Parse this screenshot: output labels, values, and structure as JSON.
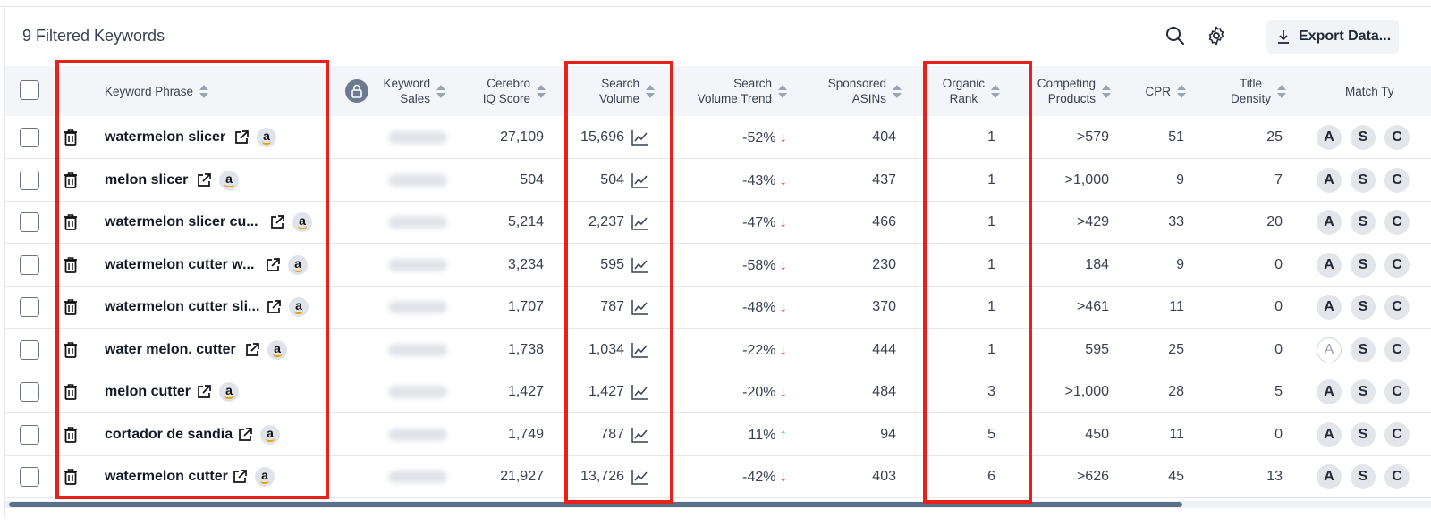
{
  "title": "9 Filtered Keywords",
  "toolbar": {
    "export_label": "Export Data..."
  },
  "headers": {
    "keyword_phrase": "Keyword Phrase",
    "keyword_sales_1": "Keyword",
    "keyword_sales_2": "Sales",
    "cerebro_1": "Cerebro",
    "cerebro_2": "IQ Score",
    "search_volume_1": "Search",
    "search_volume_2": "Volume",
    "sv_trend_1": "Search",
    "sv_trend_2": "Volume Trend",
    "sponsored_1": "Sponsored",
    "sponsored_2": "ASINs",
    "organic_1": "Organic",
    "organic_2": "Rank",
    "competing_1": "Competing",
    "competing_2": "Products",
    "cpr": "CPR",
    "title_density_1": "Title",
    "title_density_2": "Density",
    "match_type": "Match Ty"
  },
  "rows": [
    {
      "keyword": "watermelon slicer",
      "iq": "27,109",
      "sv": "15,696",
      "trend": "-52%",
      "dir": "down",
      "asins": "404",
      "rank": "1",
      "competing": ">579",
      "cpr": "51",
      "density": "25",
      "a_outline": false
    },
    {
      "keyword": "melon slicer",
      "iq": "504",
      "sv": "504",
      "trend": "-43%",
      "dir": "down",
      "asins": "437",
      "rank": "1",
      "competing": ">1,000",
      "cpr": "9",
      "density": "7",
      "a_outline": false
    },
    {
      "keyword": "watermelon slicer cu...",
      "iq": "5,214",
      "sv": "2,237",
      "trend": "-47%",
      "dir": "down",
      "asins": "466",
      "rank": "1",
      "competing": ">429",
      "cpr": "33",
      "density": "20",
      "a_outline": false
    },
    {
      "keyword": "watermelon cutter w...",
      "iq": "3,234",
      "sv": "595",
      "trend": "-58%",
      "dir": "down",
      "asins": "230",
      "rank": "1",
      "competing": "184",
      "cpr": "9",
      "density": "0",
      "a_outline": false
    },
    {
      "keyword": "watermelon cutter sli...",
      "iq": "1,707",
      "sv": "787",
      "trend": "-48%",
      "dir": "down",
      "asins": "370",
      "rank": "1",
      "competing": ">461",
      "cpr": "11",
      "density": "0",
      "a_outline": false
    },
    {
      "keyword": "water melon. cutter",
      "iq": "1,738",
      "sv": "1,034",
      "trend": "-22%",
      "dir": "down",
      "asins": "444",
      "rank": "1",
      "competing": "595",
      "cpr": "25",
      "density": "0",
      "a_outline": true
    },
    {
      "keyword": "melon cutter",
      "iq": "1,427",
      "sv": "1,427",
      "trend": "-20%",
      "dir": "down",
      "asins": "484",
      "rank": "3",
      "competing": ">1,000",
      "cpr": "28",
      "density": "5",
      "a_outline": false
    },
    {
      "keyword": "cortador de sandia",
      "iq": "1,749",
      "sv": "787",
      "trend": "11%",
      "dir": "up",
      "asins": "94",
      "rank": "5",
      "competing": "450",
      "cpr": "11",
      "density": "0",
      "a_outline": false
    },
    {
      "keyword": "watermelon cutter",
      "iq": "21,927",
      "sv": "13,726",
      "trend": "-42%",
      "dir": "down",
      "asins": "403",
      "rank": "6",
      "competing": ">626",
      "cpr": "45",
      "density": "13",
      "a_outline": false
    }
  ],
  "match_badges": {
    "a": "A",
    "s": "S",
    "c": "C"
  },
  "glyphs": {
    "arrow_down": "↓",
    "arrow_up": "↑",
    "amazon": "a"
  },
  "colors": {
    "highlight": "#e8211a",
    "down": "#e53935",
    "up": "#22c55e"
  }
}
